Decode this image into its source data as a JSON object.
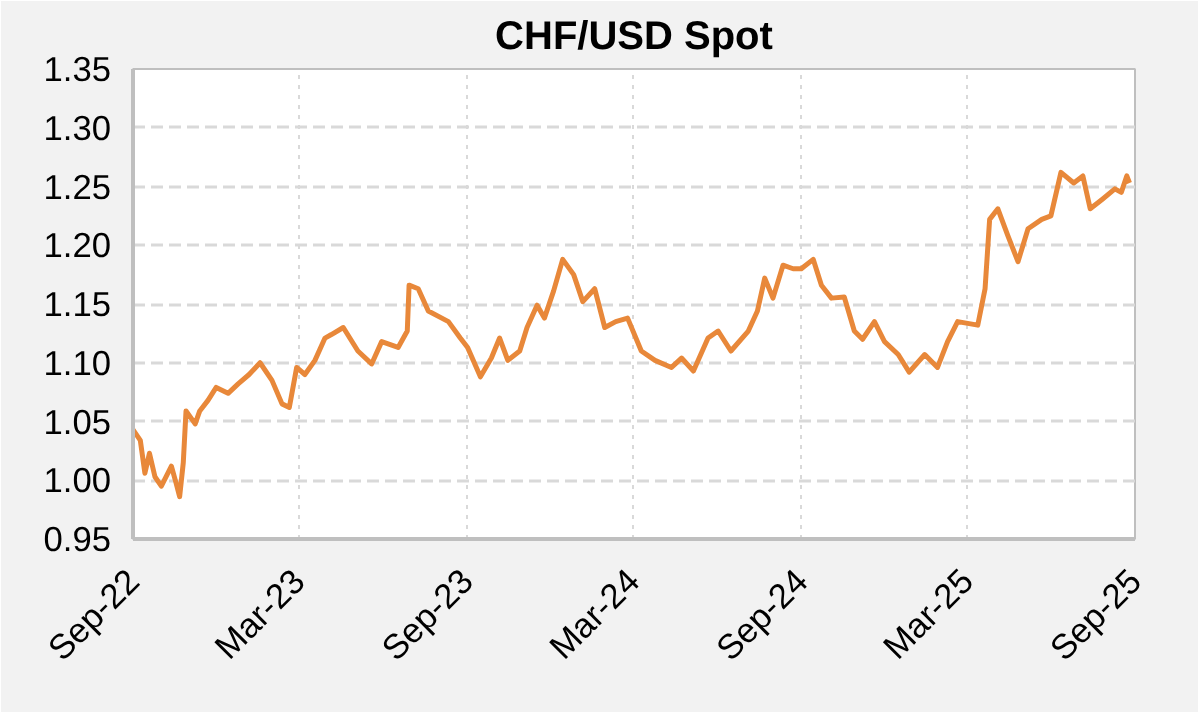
{
  "chart_data": {
    "type": "line",
    "title": "CHF/USD Spot",
    "x": [
      "2022-09-01",
      "2022-09-09",
      "2022-09-14",
      "2022-09-19",
      "2022-09-25",
      "2022-10-02",
      "2022-10-13",
      "2022-10-18",
      "2022-10-22",
      "2022-10-26",
      "2022-10-29",
      "2022-11-08",
      "2022-11-13",
      "2022-11-22",
      "2022-12-01",
      "2022-12-14",
      "2022-12-25",
      "2023-01-06",
      "2023-01-18",
      "2023-01-31",
      "2023-02-11",
      "2023-02-19",
      "2023-02-27",
      "2023-03-08",
      "2023-03-19",
      "2023-03-30",
      "2023-04-06",
      "2023-04-19",
      "2023-05-05",
      "2023-05-20",
      "2023-05-31",
      "2023-06-18",
      "2023-06-28",
      "2023-06-30",
      "2023-07-10",
      "2023-07-21",
      "2023-08-12",
      "2023-08-25",
      "2023-09-02",
      "2023-09-16",
      "2023-09-28",
      "2023-10-07",
      "2023-10-16",
      "2023-10-29",
      "2023-11-06",
      "2023-11-17",
      "2023-11-25",
      "2023-12-05",
      "2023-12-15",
      "2023-12-27",
      "2024-01-06",
      "2024-01-19",
      "2024-01-30",
      "2024-02-11",
      "2024-02-24",
      "2024-03-10",
      "2024-03-25",
      "2024-04-12",
      "2024-04-23",
      "2024-05-06",
      "2024-05-22",
      "2024-06-02",
      "2024-06-16",
      "2024-07-05",
      "2024-07-15",
      "2024-07-23",
      "2024-08-01",
      "2024-08-12",
      "2024-08-23",
      "2024-09-01",
      "2024-09-14",
      "2024-09-23",
      "2024-10-04",
      "2024-10-18",
      "2024-10-29",
      "2024-11-07",
      "2024-11-20",
      "2024-12-01",
      "2024-12-16",
      "2024-12-28",
      "2025-01-14",
      "2025-01-28",
      "2025-02-08",
      "2025-02-19",
      "2025-03-13",
      "2025-03-21",
      "2025-03-26",
      "2025-04-04",
      "2025-04-15",
      "2025-04-26",
      "2025-05-07",
      "2025-05-22",
      "2025-06-01",
      "2025-06-12",
      "2025-06-26",
      "2025-07-06",
      "2025-07-14",
      "2025-07-27",
      "2025-08-10",
      "2025-08-17",
      "2025-08-23",
      "2025-08-26"
    ],
    "series": [
      {
        "color": "#e8883a",
        "values": [
          1.043,
          1.034,
          1.006,
          1.023,
          1.003,
          0.995,
          1.012,
          0.998,
          0.986,
          1.015,
          1.059,
          1.048,
          1.059,
          1.068,
          1.079,
          1.074,
          1.082,
          1.09,
          1.1,
          1.085,
          1.065,
          1.062,
          1.096,
          1.09,
          1.102,
          1.121,
          1.124,
          1.13,
          1.11,
          1.099,
          1.118,
          1.113,
          1.127,
          1.166,
          1.163,
          1.144,
          1.135,
          1.121,
          1.113,
          1.088,
          1.104,
          1.121,
          1.102,
          1.11,
          1.13,
          1.149,
          1.138,
          1.161,
          1.188,
          1.175,
          1.152,
          1.163,
          1.13,
          1.135,
          1.138,
          1.11,
          1.102,
          1.096,
          1.104,
          1.093,
          1.121,
          1.127,
          1.11,
          1.127,
          1.144,
          1.172,
          1.155,
          1.183,
          1.18,
          1.18,
          1.188,
          1.166,
          1.155,
          1.156,
          1.127,
          1.12,
          1.135,
          1.118,
          1.107,
          1.092,
          1.107,
          1.096,
          1.118,
          1.135,
          1.132,
          1.163,
          1.222,
          1.231,
          1.208,
          1.186,
          1.214,
          1.222,
          1.225,
          1.262,
          1.253,
          1.259,
          1.231,
          1.239,
          1.248,
          1.245,
          1.259,
          1.253
        ]
      }
    ],
    "xlim": [
      "2022-09-01",
      "2025-09-01"
    ],
    "xticks": [
      {
        "value": "2022-09-01",
        "label": "Sep-22"
      },
      {
        "value": "2023-03-01",
        "label": "Mar-23"
      },
      {
        "value": "2023-09-01",
        "label": "Sep-23"
      },
      {
        "value": "2024-03-01",
        "label": "Mar-24"
      },
      {
        "value": "2024-09-01",
        "label": "Sep-24"
      },
      {
        "value": "2025-03-01",
        "label": "Mar-25"
      },
      {
        "value": "2025-09-01",
        "label": "Sep-25"
      }
    ],
    "ylim": [
      0.95,
      1.35
    ],
    "yticks": [
      {
        "value": 0.95,
        "label": "0.95"
      },
      {
        "value": 1.0,
        "label": "1.00"
      },
      {
        "value": 1.05,
        "label": "1.05"
      },
      {
        "value": 1.1,
        "label": "1.10"
      },
      {
        "value": 1.15,
        "label": "1.15"
      },
      {
        "value": 1.2,
        "label": "1.20"
      },
      {
        "value": 1.25,
        "label": "1.25"
      },
      {
        "value": 1.3,
        "label": "1.30"
      },
      {
        "value": 1.35,
        "label": "1.35"
      }
    ],
    "grid": true,
    "marker": "none",
    "line_style": "solid"
  }
}
